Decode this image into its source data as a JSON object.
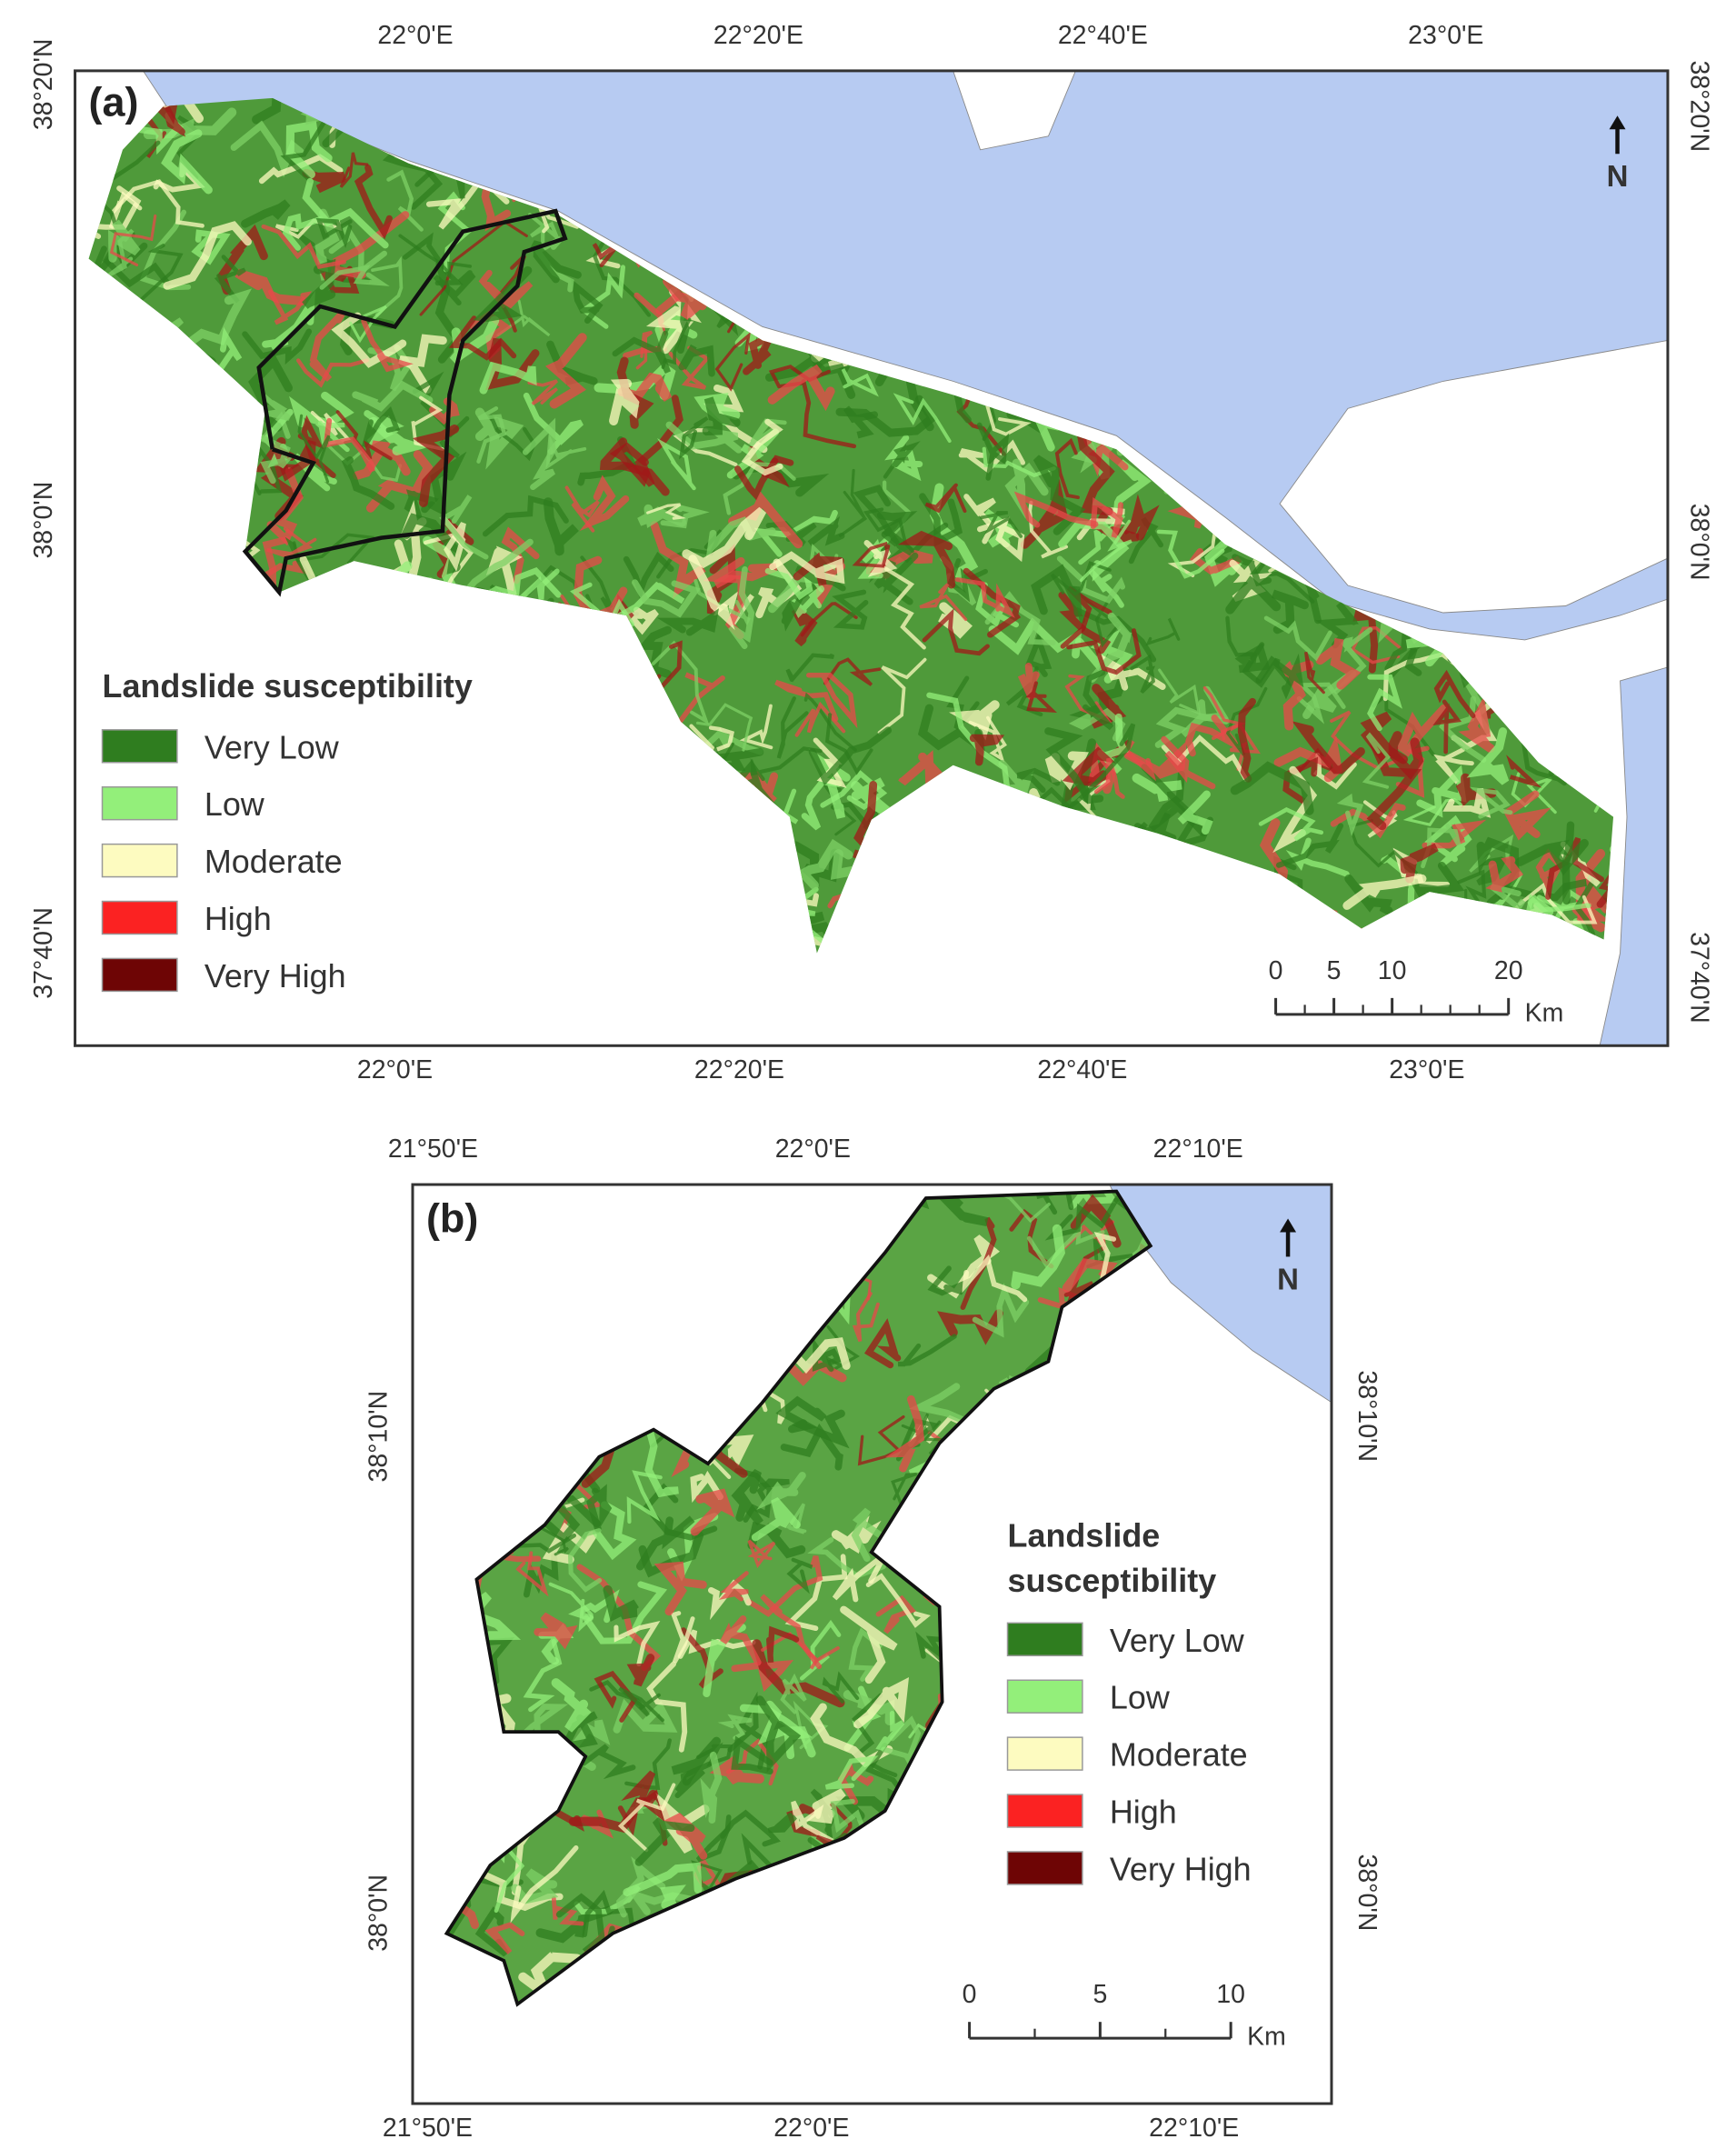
{
  "panels": [
    {
      "label": "(a)",
      "top_ticks": [
        "22°0'E",
        "22°20'E",
        "22°40'E",
        "23°0'E"
      ],
      "bottom_ticks": [
        "22°0'E",
        "22°20'E",
        "22°40'E",
        "23°0'E"
      ],
      "left_ticks": [
        "38°20'N",
        "38°0'N",
        "37°40'N"
      ],
      "right_ticks": [
        "38°20'N",
        "38°0'N",
        "37°40'N"
      ],
      "north": "N",
      "legend": {
        "title": [
          "Landslide susceptibility"
        ],
        "items": [
          {
            "name": "Very Low",
            "color": "#2f7d1f"
          },
          {
            "name": "Low",
            "color": "#93ef7a"
          },
          {
            "name": "Moderate",
            "color": "#fdfbc0"
          },
          {
            "name": "High",
            "color": "#fb2222"
          },
          {
            "name": "Very High",
            "color": "#6e0505"
          }
        ]
      },
      "scale": {
        "ticks": [
          0,
          5,
          10,
          20
        ],
        "unit": "Km"
      }
    },
    {
      "label": "(b)",
      "top_ticks": [
        "21°50'E",
        "22°0'E",
        "22°10'E"
      ],
      "bottom_ticks": [
        "21°50'E",
        "22°0'E",
        "22°10'E"
      ],
      "left_ticks": [
        "38°10'N",
        "38°0'N"
      ],
      "right_ticks": [
        "38°10'N",
        "38°0'N"
      ],
      "north": "N",
      "legend": {
        "title": [
          "Landslide",
          "susceptibility"
        ],
        "items": [
          {
            "name": "Very Low",
            "color": "#2f7d1f"
          },
          {
            "name": "Low",
            "color": "#93ef7a"
          },
          {
            "name": "Moderate",
            "color": "#fdfbc0"
          },
          {
            "name": "High",
            "color": "#fb2222"
          },
          {
            "name": "Very High",
            "color": "#6e0505"
          }
        ]
      },
      "scale": {
        "ticks": [
          0,
          5,
          10
        ],
        "unit": "Km"
      }
    }
  ]
}
